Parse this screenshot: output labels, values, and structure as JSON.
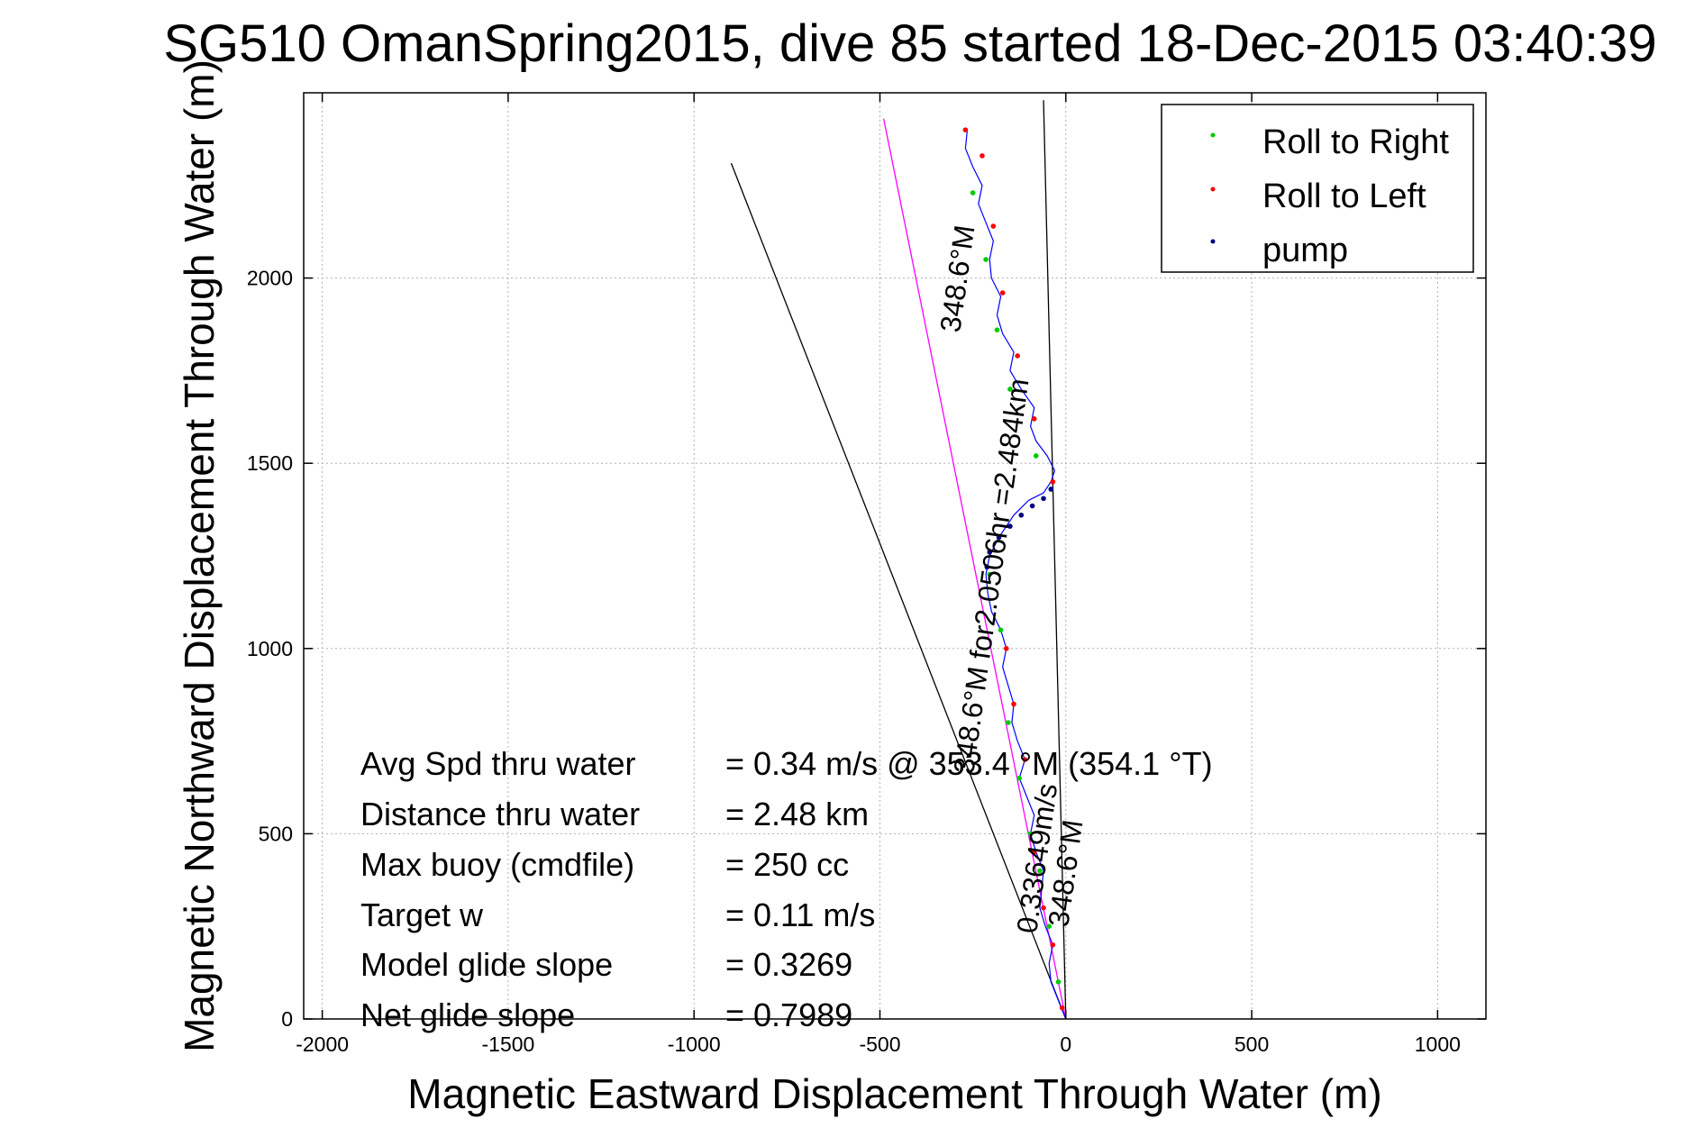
{
  "chart_data": {
    "type": "line",
    "title": "SG510 OmanSpring2015, dive 85 started 18-Dec-2015 03:40:39",
    "xlabel": "Magnetic Eastward Displacement Through Water (m)",
    "ylabel": "Magnetic Northward Displacement Through Water (m)",
    "xlim": [
      -2050,
      1130
    ],
    "ylim": [
      0,
      2500
    ],
    "xticks": [
      -2000,
      -1500,
      -1000,
      -500,
      0,
      500,
      1000
    ],
    "yticks": [
      0,
      500,
      1000,
      1500,
      2000
    ],
    "grid": true,
    "legend_position": "top-right",
    "legend": [
      {
        "label": "Roll to Right",
        "color": "#00cc00"
      },
      {
        "label": "Roll to Left",
        "color": "#ff0000"
      },
      {
        "label": "pump",
        "color": "#000080"
      }
    ],
    "track": {
      "color": "#0000ff",
      "x": [
        0,
        -20,
        -40,
        -45,
        -35,
        -55,
        -70,
        -60,
        -80,
        -95,
        -85,
        -105,
        -125,
        -110,
        -130,
        -145,
        -140,
        -155,
        -170,
        -160,
        -175,
        -200,
        -210,
        -215,
        -205,
        -180,
        -140,
        -100,
        -60,
        -40,
        -30,
        -50,
        -80,
        -95,
        -85,
        -120,
        -150,
        -140,
        -170,
        -185,
        -175,
        -200,
        -205,
        -195,
        -215,
        -235,
        -225,
        -250,
        -270,
        -265
      ],
      "y": [
        0,
        50,
        100,
        150,
        200,
        250,
        300,
        400,
        450,
        500,
        550,
        600,
        650,
        700,
        750,
        800,
        850,
        900,
        950,
        1000,
        1050,
        1100,
        1150,
        1200,
        1250,
        1300,
        1360,
        1400,
        1420,
        1450,
        1480,
        1520,
        1560,
        1600,
        1650,
        1700,
        1750,
        1800,
        1850,
        1900,
        1950,
        2000,
        2050,
        2100,
        2150,
        2200,
        2250,
        2300,
        2350,
        2400
      ]
    },
    "roll_right_points": {
      "x": [
        -20,
        -45,
        -70,
        -95,
        -125,
        -155,
        -175,
        -205,
        -80,
        -150,
        -185,
        -215,
        -250
      ],
      "y": [
        100,
        250,
        400,
        500,
        650,
        800,
        1050,
        1200,
        1520,
        1700,
        1860,
        2050,
        2230
      ]
    },
    "roll_left_points": {
      "x": [
        -10,
        -35,
        -60,
        -85,
        -110,
        -140,
        -160,
        -35,
        -85,
        -130,
        -170,
        -195,
        -225,
        -270
      ],
      "y": [
        30,
        200,
        300,
        450,
        700,
        850,
        1000,
        1450,
        1620,
        1790,
        1960,
        2140,
        2330,
        2400
      ]
    },
    "pump_points": {
      "x": [
        -40,
        -60,
        -90,
        -120,
        -150,
        -180,
        -205,
        -212
      ],
      "y": [
        1430,
        1405,
        1385,
        1360,
        1330,
        1300,
        1260,
        1220
      ]
    },
    "reference_lines": [
      {
        "name": "heading-line",
        "color": "#ff00ff",
        "x": [
          0,
          -490
        ],
        "y": [
          0,
          2430
        ]
      },
      {
        "name": "envelope-left",
        "color": "#000000",
        "x": [
          0,
          -900
        ],
        "y": [
          0,
          2310
        ]
      },
      {
        "name": "envelope-right",
        "color": "#000000",
        "x": [
          0,
          -60
        ],
        "y": [
          0,
          2480
        ]
      }
    ],
    "annotations": [
      {
        "name": "heading-annotation-top",
        "text": "348.6°M"
      },
      {
        "name": "distance-annotation",
        "text": "348.6°M for2.0506hr =2.484km"
      },
      {
        "name": "speed-annotation",
        "text": "0.33649m/s"
      },
      {
        "name": "heading-annotation-bottom",
        "text": "348.6°M"
      }
    ],
    "stats": [
      {
        "label": "Avg Spd thru water",
        "value": "=  0.34 m/s @ 353.4 °M (354.1 °T)"
      },
      {
        "label": "Distance thru water",
        "value": "=  2.48 km"
      },
      {
        "label": "Max buoy (cmdfile)",
        "value": "= 250 cc"
      },
      {
        "label": "Target w",
        "value": "= 0.11 m/s"
      },
      {
        "label": "Model glide slope",
        "value": "= 0.3269"
      },
      {
        "label": "Net glide slope",
        "value": "= 0.7989"
      }
    ]
  }
}
